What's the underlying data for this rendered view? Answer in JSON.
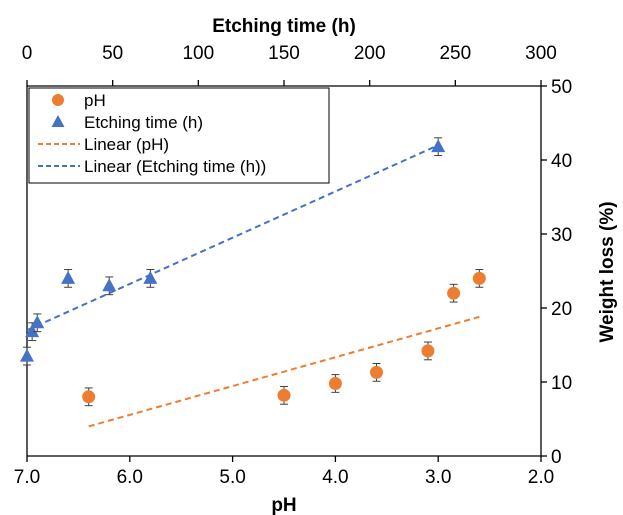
{
  "chart_data": {
    "type": "scatter",
    "title": "",
    "x_bottom": {
      "label": "pH",
      "range": [
        7.0,
        2.0
      ],
      "reversed": true,
      "ticks": [
        7.0,
        6.0,
        5.0,
        4.0,
        3.0,
        2.0
      ],
      "tick_labels": [
        "7.0",
        "6.0",
        "5.0",
        "4.0",
        "3.0",
        "2.0"
      ]
    },
    "x_top": {
      "label": "Etching time (h)",
      "range": [
        0,
        300
      ],
      "ticks": [
        0,
        50,
        100,
        150,
        200,
        250,
        300
      ],
      "tick_labels": [
        "0",
        "50",
        "100",
        "150",
        "200",
        "250",
        "300"
      ]
    },
    "y_right": {
      "label": "Weight loss (%)",
      "range": [
        0,
        50
      ],
      "ticks": [
        0,
        10,
        20,
        30,
        40,
        50
      ],
      "tick_labels": [
        "0",
        "10",
        "20",
        "30",
        "40",
        "50"
      ]
    },
    "grid": false,
    "legend_position": "top-left",
    "series": [
      {
        "name": "pH",
        "axis": "bottom",
        "marker": "circle",
        "color": "#ED7D31",
        "points": [
          {
            "x": 6.4,
            "y": 8.0,
            "err": 1.2
          },
          {
            "x": 4.5,
            "y": 8.2,
            "err": 1.2
          },
          {
            "x": 4.0,
            "y": 9.8,
            "err": 1.2
          },
          {
            "x": 3.6,
            "y": 11.3,
            "err": 1.2
          },
          {
            "x": 3.1,
            "y": 14.2,
            "err": 1.2
          },
          {
            "x": 2.85,
            "y": 22.0,
            "err": 1.2
          },
          {
            "x": 2.6,
            "y": 24.0,
            "err": 1.2
          }
        ]
      },
      {
        "name": "Etching time (h)",
        "axis": "top",
        "marker": "triangle",
        "color": "#4472C4",
        "points": [
          {
            "x": 0,
            "y": 13.5,
            "err": 1.2
          },
          {
            "x": 3,
            "y": 16.8,
            "err": 1.2
          },
          {
            "x": 6,
            "y": 18.0,
            "err": 1.2
          },
          {
            "x": 24,
            "y": 24.0,
            "err": 1.2
          },
          {
            "x": 48,
            "y": 23.0,
            "err": 1.2
          },
          {
            "x": 72,
            "y": 24.0,
            "err": 1.2
          },
          {
            "x": 240,
            "y": 41.8,
            "err": 1.2
          }
        ]
      }
    ],
    "trendlines": [
      {
        "name": "Linear (pH)",
        "axis": "bottom",
        "color": "#ED7D31",
        "dash": true,
        "from": {
          "x": 6.4,
          "y": 4.0
        },
        "to": {
          "x": 2.6,
          "y": 18.8
        }
      },
      {
        "name": "Linear (Etching time (h))",
        "axis": "top",
        "color": "#4472C4",
        "dash": true,
        "from": {
          "x": 0,
          "y": 17.0
        },
        "to": {
          "x": 240,
          "y": 42.0
        }
      }
    ]
  }
}
